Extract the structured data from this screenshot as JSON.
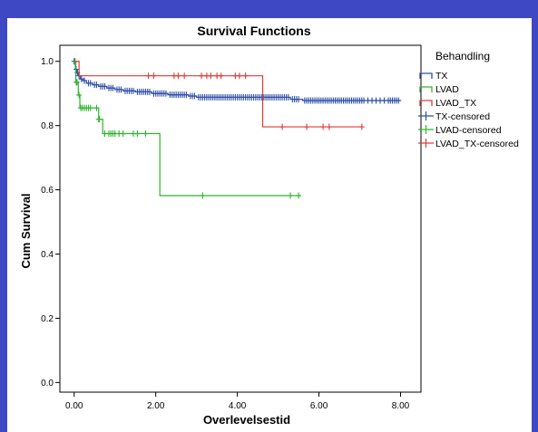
{
  "chart_data": {
    "type": "line",
    "title": "Survival Functions",
    "xlabel": "Overlevelsestid",
    "ylabel": "Cum Survival",
    "xlim": [
      -0.35,
      8.5
    ],
    "ylim": [
      -0.03,
      1.05
    ],
    "x_ticks": [
      0,
      2,
      4,
      6,
      8
    ],
    "x_tick_labels": [
      "0.00",
      "2.00",
      "4.00",
      "6.00",
      "8.00"
    ],
    "y_ticks": [
      0,
      0.2,
      0.4,
      0.6,
      0.8,
      1.0
    ],
    "y_tick_labels": [
      "0.0",
      "0.2",
      "0.4",
      "0.6",
      "0.8",
      "1.0"
    ],
    "grid": false,
    "legend_title": "Behandling",
    "legend_position": "right",
    "series": [
      {
        "name": "TX",
        "color": "#2f4fa8",
        "step_x": [
          0,
          0.03,
          0.06,
          0.1,
          0.15,
          0.22,
          0.3,
          0.45,
          0.6,
          0.8,
          1.0,
          1.2,
          1.5,
          1.9,
          2.3,
          2.8,
          3.0,
          5.3,
          5.6,
          8.0
        ],
        "step_y": [
          1.0,
          0.975,
          0.965,
          0.955,
          0.945,
          0.94,
          0.932,
          0.927,
          0.922,
          0.917,
          0.912,
          0.908,
          0.905,
          0.9,
          0.896,
          0.892,
          0.888,
          0.882,
          0.878,
          0.878
        ],
        "censored_x": [
          0.0,
          0.02,
          0.05,
          0.08,
          0.12,
          0.18,
          0.25,
          0.35,
          0.4,
          0.5,
          0.55,
          0.65,
          0.7,
          0.75,
          0.85,
          0.9,
          0.95,
          1.05,
          1.1,
          1.15,
          1.25,
          1.3,
          1.35,
          1.4,
          1.45,
          1.55,
          1.6,
          1.65,
          1.7,
          1.75,
          1.8,
          1.85,
          1.95,
          2.0,
          2.05,
          2.1,
          2.15,
          2.2,
          2.25,
          2.35,
          2.4,
          2.45,
          2.5,
          2.55,
          2.6,
          2.65,
          2.7,
          2.75,
          2.85,
          2.9,
          2.95,
          3.05,
          3.1,
          3.15,
          3.2,
          3.25,
          3.3,
          3.35,
          3.4,
          3.45,
          3.5,
          3.55,
          3.6,
          3.65,
          3.7,
          3.75,
          3.8,
          3.85,
          3.9,
          3.95,
          4.0,
          4.05,
          4.1,
          4.15,
          4.2,
          4.25,
          4.3,
          4.35,
          4.4,
          4.45,
          4.5,
          4.55,
          4.6,
          4.65,
          4.7,
          4.75,
          4.8,
          4.85,
          4.9,
          4.95,
          5.0,
          5.05,
          5.1,
          5.15,
          5.2,
          5.25,
          5.35,
          5.4,
          5.45,
          5.5,
          5.65,
          5.7,
          5.75,
          5.8,
          5.85,
          5.9,
          5.95,
          6.0,
          6.05,
          6.1,
          6.15,
          6.2,
          6.25,
          6.3,
          6.35,
          6.4,
          6.45,
          6.5,
          6.55,
          6.6,
          6.65,
          6.7,
          6.75,
          6.8,
          6.85,
          6.9,
          6.95,
          7.0,
          7.05,
          7.1,
          7.2,
          7.3,
          7.4,
          7.5,
          7.6,
          7.7,
          7.75,
          7.8,
          7.85,
          7.9,
          7.95
        ]
      },
      {
        "name": "LVAD",
        "color": "#2fb52f",
        "step_x": [
          0,
          0.04,
          0.1,
          0.14,
          0.6,
          0.7,
          2.1,
          5.55
        ],
        "step_y": [
          1.0,
          0.935,
          0.895,
          0.855,
          0.82,
          0.775,
          0.582,
          0.582
        ],
        "censored_x": [
          0.02,
          0.05,
          0.07,
          0.12,
          0.16,
          0.2,
          0.25,
          0.3,
          0.35,
          0.4,
          0.55,
          0.6,
          0.62,
          0.75,
          0.85,
          0.9,
          0.95,
          1.0,
          1.1,
          1.2,
          1.45,
          1.55,
          1.75,
          3.15,
          5.3,
          5.5
        ]
      },
      {
        "name": "LVAD_TX",
        "color": "#e23a3a",
        "step_x": [
          0,
          0.12,
          4.62,
          7.05
        ],
        "step_y": [
          1.0,
          0.955,
          0.796,
          0.796
        ],
        "censored_x": [
          1.82,
          1.95,
          2.45,
          2.55,
          2.7,
          3.12,
          3.25,
          3.35,
          3.5,
          3.6,
          3.95,
          4.05,
          4.2,
          5.1,
          5.7,
          6.1,
          6.25,
          7.05
        ]
      }
    ],
    "legend_entries": [
      {
        "label": "TX",
        "kind": "line",
        "series": 0
      },
      {
        "label": "LVAD",
        "kind": "line",
        "series": 1
      },
      {
        "label": "LVAD_TX",
        "kind": "line",
        "series": 2
      },
      {
        "label": "TX-censored",
        "kind": "cross",
        "series": 0
      },
      {
        "label": "LVAD-censored",
        "kind": "cross",
        "series": 1
      },
      {
        "label": "LVAD_TX-censored",
        "kind": "cross",
        "series": 2
      }
    ]
  }
}
